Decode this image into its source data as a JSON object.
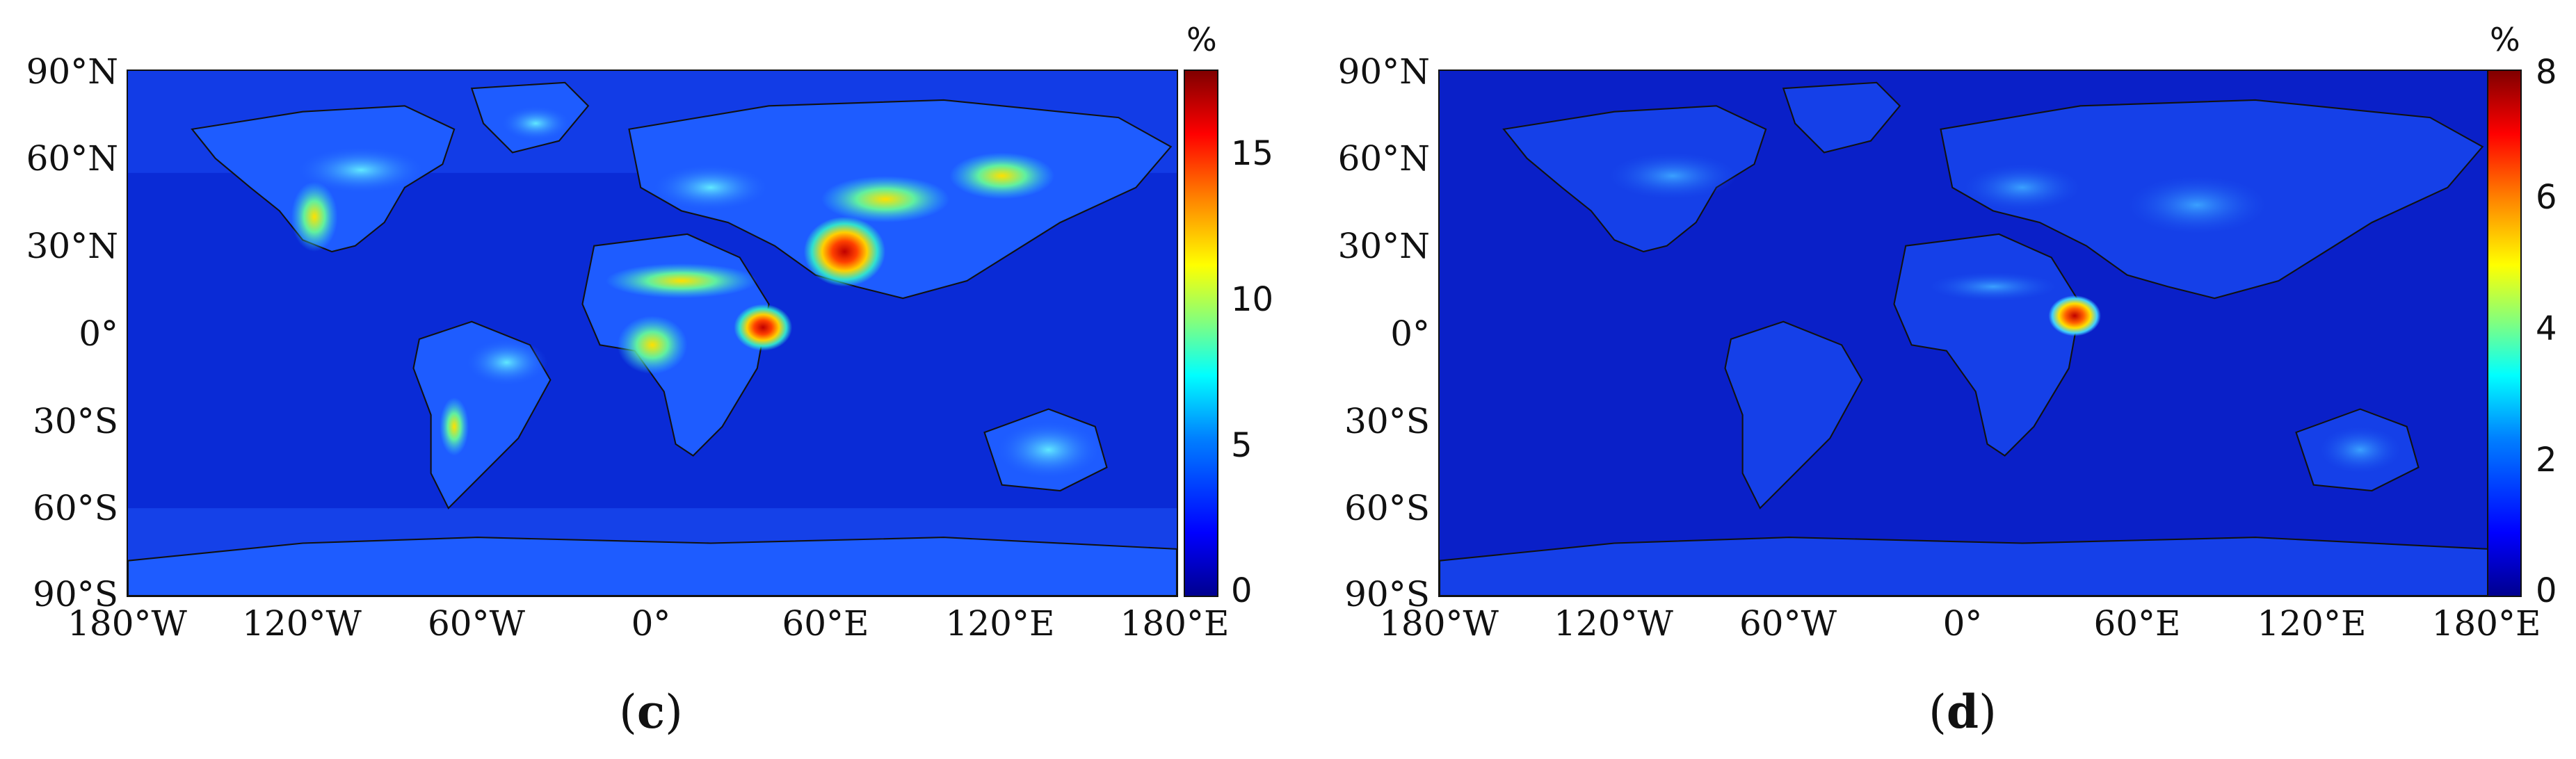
{
  "panels": [
    {
      "id": "c",
      "caption_open": "(",
      "caption_letter": "c",
      "caption_close": ")",
      "colorbar": {
        "unit": "%",
        "ticks": [
          "0",
          "5",
          "10",
          "15"
        ],
        "min": 0,
        "max": 18
      }
    },
    {
      "id": "d",
      "caption_open": "(",
      "caption_letter": "d",
      "caption_close": ")",
      "colorbar": {
        "unit": "%",
        "ticks": [
          "0",
          "2",
          "4",
          "6",
          "8"
        ],
        "min": 0,
        "max": 8
      }
    }
  ],
  "axes": {
    "lat_labels": [
      "90°N",
      "60°N",
      "30°N",
      "0°",
      "30°S",
      "60°S",
      "90°S"
    ],
    "lon_labels": [
      "180°W",
      "120°W",
      "60°W",
      "0°",
      "60°E",
      "120°E",
      "180°E"
    ]
  },
  "colormap": "jet"
}
